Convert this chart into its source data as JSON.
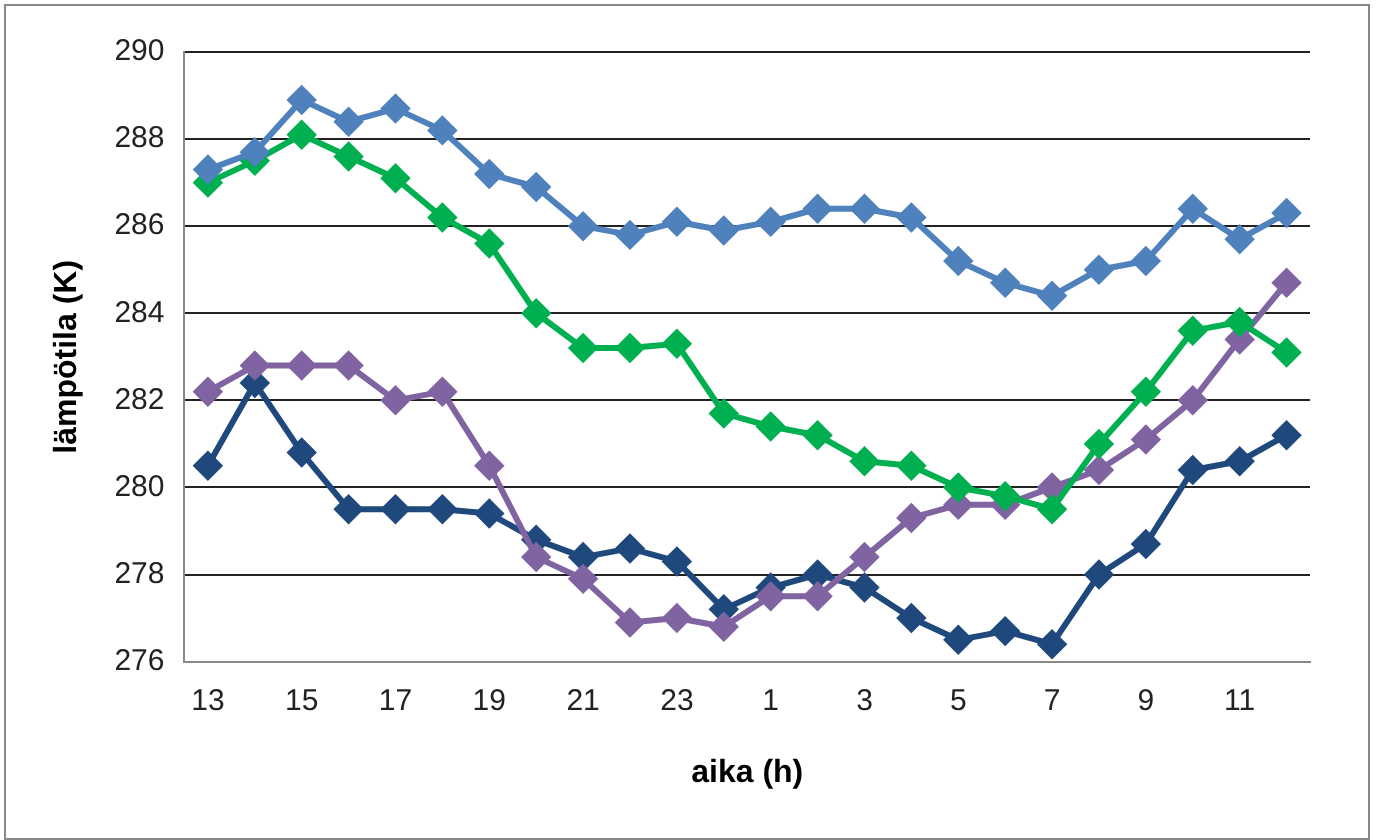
{
  "chart_data": {
    "type": "line",
    "xlabel": "aika (h)",
    "ylabel": "lämpötila (K)",
    "categories": [
      "13",
      null,
      "15",
      null,
      "17",
      null,
      "19",
      null,
      "21",
      null,
      "23",
      null,
      "1",
      null,
      "3",
      null,
      "5",
      null,
      "7",
      null,
      "9",
      null,
      "11",
      null
    ],
    "series": [
      {
        "color": "#4f81bd",
        "values": [
          287.3,
          287.7,
          288.9,
          288.4,
          288.7,
          288.2,
          287.2,
          286.9,
          286.0,
          285.8,
          286.1,
          285.9,
          286.1,
          286.4,
          286.4,
          286.2,
          285.2,
          284.7,
          284.4,
          285.0,
          285.2,
          286.4,
          285.7,
          286.3
        ]
      },
      {
        "color": "#00b050",
        "values": [
          287.0,
          287.5,
          288.1,
          287.6,
          287.1,
          286.2,
          285.6,
          284.0,
          283.2,
          283.2,
          283.3,
          281.7,
          281.4,
          281.2,
          280.6,
          280.5,
          280.0,
          279.8,
          279.5,
          281.0,
          282.2,
          283.6,
          283.8,
          283.1
        ]
      },
      {
        "color": "#8064a2",
        "values": [
          282.2,
          282.8,
          282.8,
          282.8,
          282.0,
          282.2,
          280.5,
          278.4,
          277.9,
          276.9,
          277.0,
          276.8,
          277.5,
          277.5,
          278.4,
          279.3,
          279.6,
          279.6,
          280.0,
          280.4,
          281.1,
          282.0,
          283.4,
          284.7
        ]
      },
      {
        "color": "#1f497d",
        "values": [
          280.5,
          282.4,
          280.8,
          279.5,
          279.5,
          279.5,
          279.4,
          278.8,
          278.4,
          278.6,
          278.3,
          277.2,
          277.7,
          278.0,
          277.7,
          277.0,
          276.5,
          276.7,
          276.4,
          278.0,
          278.7,
          280.4,
          280.6,
          281.2
        ]
      }
    ],
    "ylim": [
      276,
      290
    ],
    "yticks": [
      276,
      278,
      280,
      282,
      284,
      286,
      288,
      290
    ],
    "grid": "y",
    "legend": false,
    "marker": "diamond",
    "line_style": "solid"
  }
}
